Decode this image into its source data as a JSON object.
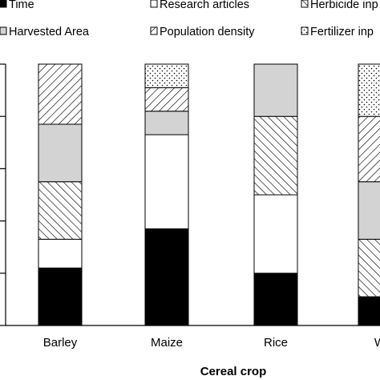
{
  "chart_data": {
    "type": "bar",
    "stacked": true,
    "categories": [
      "Barley",
      "Maize",
      "Rice",
      "Wheat"
    ],
    "category_labels": [
      "Barley",
      "Maize",
      "Rice",
      "W"
    ],
    "xlabel": "Cereal crop",
    "ylabel": "",
    "ylim": [
      0,
      100
    ],
    "grid": false,
    "legend_position": "top",
    "series": [
      {
        "name": "Time",
        "pattern": "solid-black",
        "values": [
          22,
          37,
          20,
          11
        ]
      },
      {
        "name": "Research articles",
        "pattern": "white",
        "values": [
          11,
          36,
          30,
          0
        ]
      },
      {
        "name": "Herbicide inp",
        "pattern": "diagonal-back",
        "values": [
          22,
          0,
          30,
          22
        ]
      },
      {
        "name": "Harvested Area",
        "pattern": "light-gray",
        "values": [
          22,
          9,
          20,
          22
        ]
      },
      {
        "name": "Population density",
        "pattern": "diagonal-forward",
        "values": [
          23,
          9,
          0,
          25
        ]
      },
      {
        "name": "Fertilizer inp",
        "pattern": "dotted",
        "values": [
          0,
          9,
          0,
          20
        ]
      }
    ]
  }
}
